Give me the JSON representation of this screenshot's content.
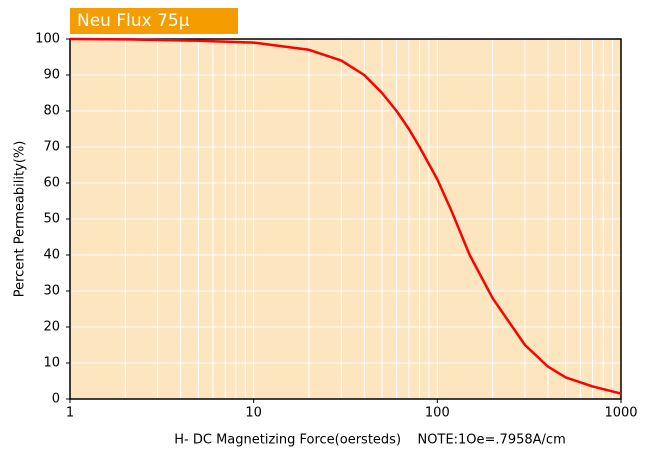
{
  "chart_data": {
    "type": "line",
    "title": "Neu Flux 75µ",
    "x_label": "H- DC Magnetizing Force(oersteds)    NOTE:1Oe=.7958A/cm",
    "y_label": "Percent Permeability(%)",
    "x": [
      1,
      2,
      5,
      10,
      20,
      30,
      40,
      50,
      60,
      70,
      80,
      100,
      120,
      150,
      200,
      300,
      400,
      500,
      700,
      1000
    ],
    "series": [
      {
        "name": "Neu Flux 75µ",
        "color": "#ff0000",
        "values": [
          100,
          99.9,
          99.5,
          99,
          97,
          94,
          90,
          85,
          80,
          75,
          70,
          61,
          52,
          40,
          28,
          15,
          9,
          6,
          3.5,
          1.5
        ]
      }
    ],
    "xlim": [
      1,
      1000
    ],
    "xticks": [
      1,
      10,
      100,
      1000
    ],
    "x_log": true,
    "ylim": [
      0,
      100
    ],
    "yticks": [
      0,
      10,
      20,
      30,
      40,
      50,
      60,
      70,
      80,
      90,
      100
    ],
    "grid": true,
    "background": "#fde5bf",
    "title_color": "#f59c00"
  }
}
